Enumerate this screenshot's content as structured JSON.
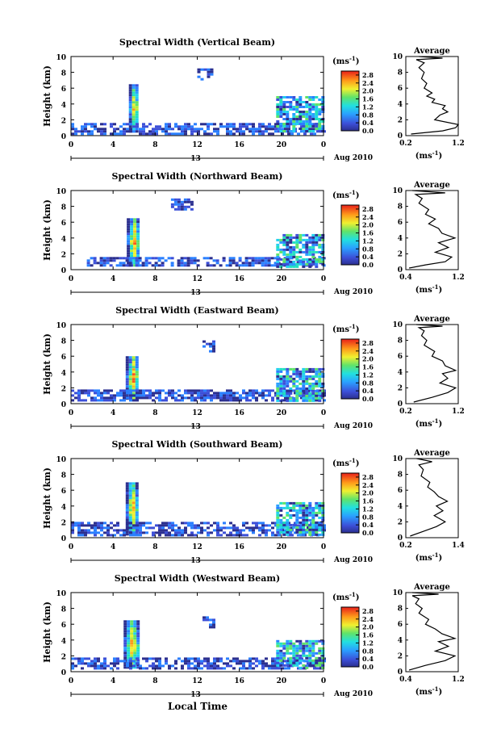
{
  "figure": {
    "xlabel_bottom": "Local Time",
    "date_label": "Aug 2010",
    "date_tick": "13",
    "colorbar_unit": "(ms",
    "colorbar_unit_exp": "-1",
    "colorbar_unit_close": ")",
    "avg_title": "Average",
    "avg_unit": "(ms",
    "avg_unit_exp": "-1",
    "avg_unit_close": ")"
  },
  "chart_data": [
    {
      "type": "heatmap",
      "title": "Spectral Width (Vertical Beam)",
      "ylabel": "Height (km)",
      "x_ticks": [
        "0",
        "4",
        "8",
        "12",
        "16",
        "20",
        "0"
      ],
      "xlim": [
        0,
        24
      ],
      "y_ticks": [
        "0",
        "2",
        "4",
        "6",
        "8",
        "10"
      ],
      "ylim": [
        0,
        10
      ],
      "colorbar_ticks": [
        "0.0",
        "0.4",
        "0.8",
        "1.2",
        "1.6",
        "2.0",
        "2.4",
        "2.8"
      ],
      "colorbar_range": [
        0,
        3.0
      ],
      "features": [
        {
          "t": [
            5.5,
            6.3
          ],
          "h": [
            0.5,
            6.5
          ],
          "level": "high"
        },
        {
          "t": [
            0.0,
            24.0
          ],
          "h": [
            0.3,
            1.6
          ],
          "level": "low"
        },
        {
          "t": [
            12.0,
            13.5
          ],
          "h": [
            7.0,
            8.5
          ],
          "level": "low"
        },
        {
          "t": [
            19.5,
            24.0
          ],
          "h": [
            0.5,
            5.0
          ],
          "level": "medium"
        }
      ],
      "average": {
        "title": "Average",
        "x_ticks": [
          "0.2",
          "1.2"
        ],
        "xlim": [
          0.2,
          1.2
        ],
        "y_ticks": [
          "0",
          "2",
          "4",
          "6",
          "8",
          "10"
        ],
        "profile": [
          [
            0.3,
            0.2
          ],
          [
            0.9,
            0.6
          ],
          [
            1.15,
            1.0
          ],
          [
            1.2,
            1.4
          ],
          [
            0.75,
            2.0
          ],
          [
            0.85,
            2.6
          ],
          [
            1.0,
            3.0
          ],
          [
            0.9,
            3.4
          ],
          [
            0.95,
            3.8
          ],
          [
            0.7,
            4.2
          ],
          [
            0.75,
            4.6
          ],
          [
            0.6,
            5.0
          ],
          [
            0.7,
            5.4
          ],
          [
            0.55,
            6.0
          ],
          [
            0.6,
            6.6
          ],
          [
            0.5,
            7.2
          ],
          [
            0.55,
            8.0
          ],
          [
            0.45,
            8.6
          ],
          [
            0.55,
            9.2
          ],
          [
            0.4,
            9.6
          ],
          [
            0.9,
            9.8
          ],
          [
            0.45,
            10.0
          ]
        ]
      }
    },
    {
      "type": "heatmap",
      "title": "Spectral Width (Northward Beam)",
      "ylabel": "Height (km)",
      "x_ticks": [
        "0",
        "4",
        "8",
        "12",
        "16",
        "20",
        "0"
      ],
      "xlim": [
        0,
        24
      ],
      "y_ticks": [
        "0",
        "2",
        "4",
        "6",
        "8",
        "10"
      ],
      "ylim": [
        0,
        10
      ],
      "colorbar_ticks": [
        "0.0",
        "0.4",
        "0.8",
        "1.2",
        "1.6",
        "2.0",
        "2.4",
        "2.8"
      ],
      "colorbar_range": [
        0,
        3.0
      ],
      "features": [
        {
          "t": [
            5.3,
            6.4
          ],
          "h": [
            0.5,
            6.5
          ],
          "level": "high"
        },
        {
          "t": [
            1.5,
            24.0
          ],
          "h": [
            0.4,
            1.6
          ],
          "level": "low"
        },
        {
          "t": [
            9.5,
            11.5
          ],
          "h": [
            7.5,
            9.0
          ],
          "level": "low"
        },
        {
          "t": [
            19.5,
            24.0
          ],
          "h": [
            0.5,
            4.5
          ],
          "level": "medium"
        }
      ],
      "average": {
        "title": "Average",
        "x_ticks": [
          "0.4",
          "1.2"
        ],
        "xlim": [
          0.4,
          1.2
        ],
        "y_ticks": [
          "0",
          "2",
          "4",
          "6",
          "8",
          "10"
        ],
        "profile": [
          [
            0.45,
            0.2
          ],
          [
            0.7,
            0.6
          ],
          [
            1.0,
            1.0
          ],
          [
            1.1,
            1.6
          ],
          [
            0.85,
            2.2
          ],
          [
            1.05,
            2.8
          ],
          [
            0.9,
            3.4
          ],
          [
            1.15,
            4.0
          ],
          [
            0.95,
            4.6
          ],
          [
            0.9,
            5.2
          ],
          [
            0.75,
            5.8
          ],
          [
            0.85,
            6.4
          ],
          [
            0.7,
            7.0
          ],
          [
            0.75,
            7.6
          ],
          [
            0.6,
            8.4
          ],
          [
            0.65,
            9.0
          ],
          [
            0.55,
            9.5
          ],
          [
            1.0,
            9.7
          ],
          [
            0.5,
            10.0
          ]
        ]
      }
    },
    {
      "type": "heatmap",
      "title": "Spectral Width (Eastward Beam)",
      "ylabel": "Height (km)",
      "x_ticks": [
        "0",
        "4",
        "8",
        "12",
        "16",
        "20",
        "0"
      ],
      "xlim": [
        0,
        24
      ],
      "y_ticks": [
        "0",
        "2",
        "4",
        "6",
        "8",
        "10"
      ],
      "ylim": [
        0,
        10
      ],
      "colorbar_ticks": [
        "0.0",
        "0.4",
        "0.8",
        "1.2",
        "1.6",
        "2.0",
        "2.4",
        "2.8"
      ],
      "colorbar_range": [
        0,
        3.0
      ],
      "features": [
        {
          "t": [
            5.2,
            6.4
          ],
          "h": [
            0.5,
            6.0
          ],
          "level": "high"
        },
        {
          "t": [
            0.0,
            24.0
          ],
          "h": [
            0.4,
            1.8
          ],
          "level": "low"
        },
        {
          "t": [
            12.5,
            13.5
          ],
          "h": [
            6.5,
            8.0
          ],
          "level": "low"
        },
        {
          "t": [
            19.5,
            24.0
          ],
          "h": [
            0.5,
            4.5
          ],
          "level": "medium"
        }
      ],
      "average": {
        "title": "Average",
        "x_ticks": [
          "0.2",
          "1.2"
        ],
        "xlim": [
          0.2,
          1.2
        ],
        "y_ticks": [
          "0",
          "2",
          "4",
          "6",
          "8",
          "10"
        ],
        "profile": [
          [
            0.35,
            0.2
          ],
          [
            0.7,
            0.8
          ],
          [
            1.0,
            1.4
          ],
          [
            1.15,
            2.0
          ],
          [
            0.85,
            2.6
          ],
          [
            1.0,
            3.2
          ],
          [
            0.9,
            3.8
          ],
          [
            1.15,
            4.2
          ],
          [
            0.95,
            4.8
          ],
          [
            0.9,
            5.4
          ],
          [
            0.7,
            6.0
          ],
          [
            0.75,
            6.6
          ],
          [
            0.55,
            7.4
          ],
          [
            0.6,
            8.0
          ],
          [
            0.5,
            8.6
          ],
          [
            0.55,
            9.2
          ],
          [
            0.45,
            9.6
          ],
          [
            0.9,
            9.8
          ],
          [
            0.4,
            10.0
          ]
        ]
      }
    },
    {
      "type": "heatmap",
      "title": "Spectral Width (Southward Beam)",
      "ylabel": "Height (km)",
      "x_ticks": [
        "0",
        "4",
        "8",
        "12",
        "16",
        "20",
        "0"
      ],
      "xlim": [
        0,
        24
      ],
      "y_ticks": [
        "0",
        "2",
        "4",
        "6",
        "8",
        "10"
      ],
      "ylim": [
        0,
        10
      ],
      "colorbar_ticks": [
        "0.0",
        "0.4",
        "0.8",
        "1.2",
        "1.6",
        "2.0",
        "2.4",
        "2.8"
      ],
      "colorbar_range": [
        0,
        3.0
      ],
      "features": [
        {
          "t": [
            5.2,
            6.3
          ],
          "h": [
            0.5,
            7.0
          ],
          "level": "high"
        },
        {
          "t": [
            0.0,
            24.0
          ],
          "h": [
            0.3,
            2.0
          ],
          "level": "low"
        },
        {
          "t": [
            19.5,
            24.0
          ],
          "h": [
            0.5,
            4.5
          ],
          "level": "medium"
        }
      ],
      "average": {
        "title": "Average",
        "x_ticks": [
          "0.2",
          "1.4"
        ],
        "xlim": [
          0.2,
          1.4
        ],
        "y_ticks": [
          "0",
          "2",
          "4",
          "6",
          "8",
          "10"
        ],
        "profile": [
          [
            0.3,
            0.2
          ],
          [
            0.6,
            0.8
          ],
          [
            0.9,
            1.4
          ],
          [
            1.1,
            2.0
          ],
          [
            0.85,
            2.8
          ],
          [
            1.05,
            3.4
          ],
          [
            0.9,
            4.0
          ],
          [
            1.15,
            4.6
          ],
          [
            0.95,
            5.2
          ],
          [
            0.85,
            5.8
          ],
          [
            0.7,
            6.4
          ],
          [
            0.75,
            7.0
          ],
          [
            0.55,
            7.8
          ],
          [
            0.6,
            8.6
          ],
          [
            0.5,
            9.2
          ],
          [
            0.8,
            9.6
          ],
          [
            0.45,
            10.0
          ]
        ]
      }
    },
    {
      "type": "heatmap",
      "title": "Spectral Width (Westward Beam)",
      "ylabel": "Height (km)",
      "x_ticks": [
        "0",
        "4",
        "8",
        "12",
        "16",
        "20",
        "0"
      ],
      "xlim": [
        0,
        24
      ],
      "y_ticks": [
        "0",
        "2",
        "4",
        "6",
        "8",
        "10"
      ],
      "ylim": [
        0,
        10
      ],
      "colorbar_ticks": [
        "0.0",
        "0.4",
        "0.8",
        "1.2",
        "1.6",
        "2.0",
        "2.4",
        "2.8"
      ],
      "colorbar_range": [
        0,
        3.0
      ],
      "features": [
        {
          "t": [
            5.0,
            6.4
          ],
          "h": [
            0.5,
            6.5
          ],
          "level": "high"
        },
        {
          "t": [
            0.0,
            24.0
          ],
          "h": [
            0.3,
            1.8
          ],
          "level": "low"
        },
        {
          "t": [
            12.5,
            13.5
          ],
          "h": [
            5.5,
            7.0
          ],
          "level": "low"
        },
        {
          "t": [
            19.5,
            24.0
          ],
          "h": [
            0.5,
            4.0
          ],
          "level": "medium"
        }
      ],
      "average": {
        "title": "Average",
        "x_ticks": [
          "0.4",
          "1.2"
        ],
        "xlim": [
          0.4,
          1.2
        ],
        "y_ticks": [
          "0",
          "2",
          "4",
          "6",
          "8",
          "10"
        ],
        "profile": [
          [
            0.45,
            0.2
          ],
          [
            0.7,
            0.8
          ],
          [
            1.0,
            1.4
          ],
          [
            1.15,
            2.0
          ],
          [
            0.85,
            2.6
          ],
          [
            1.05,
            3.2
          ],
          [
            0.9,
            3.8
          ],
          [
            1.15,
            4.2
          ],
          [
            0.95,
            4.8
          ],
          [
            0.85,
            5.4
          ],
          [
            0.7,
            6.0
          ],
          [
            0.75,
            6.6
          ],
          [
            0.6,
            7.4
          ],
          [
            0.65,
            8.0
          ],
          [
            0.55,
            8.6
          ],
          [
            0.6,
            9.2
          ],
          [
            0.5,
            9.6
          ],
          [
            0.9,
            9.8
          ],
          [
            0.5,
            10.0
          ]
        ]
      }
    }
  ]
}
